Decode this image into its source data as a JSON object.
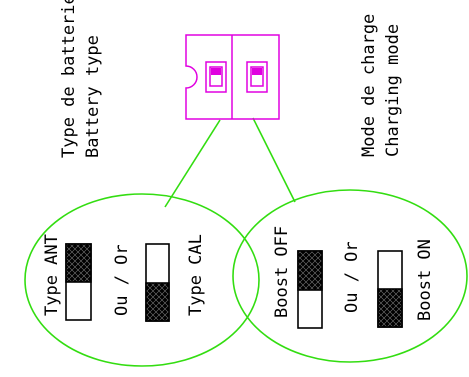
{
  "labels": {
    "battery_type_fr": "Type de batterie",
    "battery_type_en": "Battery type",
    "charge_mode_fr": "Mode de charge",
    "charge_mode_en": "Charging mode"
  },
  "left_bubble": {
    "option_a": "Type ANT",
    "separator": "Ou / Or",
    "option_b": "Type CAL"
  },
  "right_bubble": {
    "option_a": "Boost OFF",
    "separator": "Ou / Or",
    "option_b": "Boost ON"
  },
  "colors": {
    "outline_green": "#33dd11",
    "component_magenta": "#e000e0",
    "switch_black": "#000000"
  }
}
